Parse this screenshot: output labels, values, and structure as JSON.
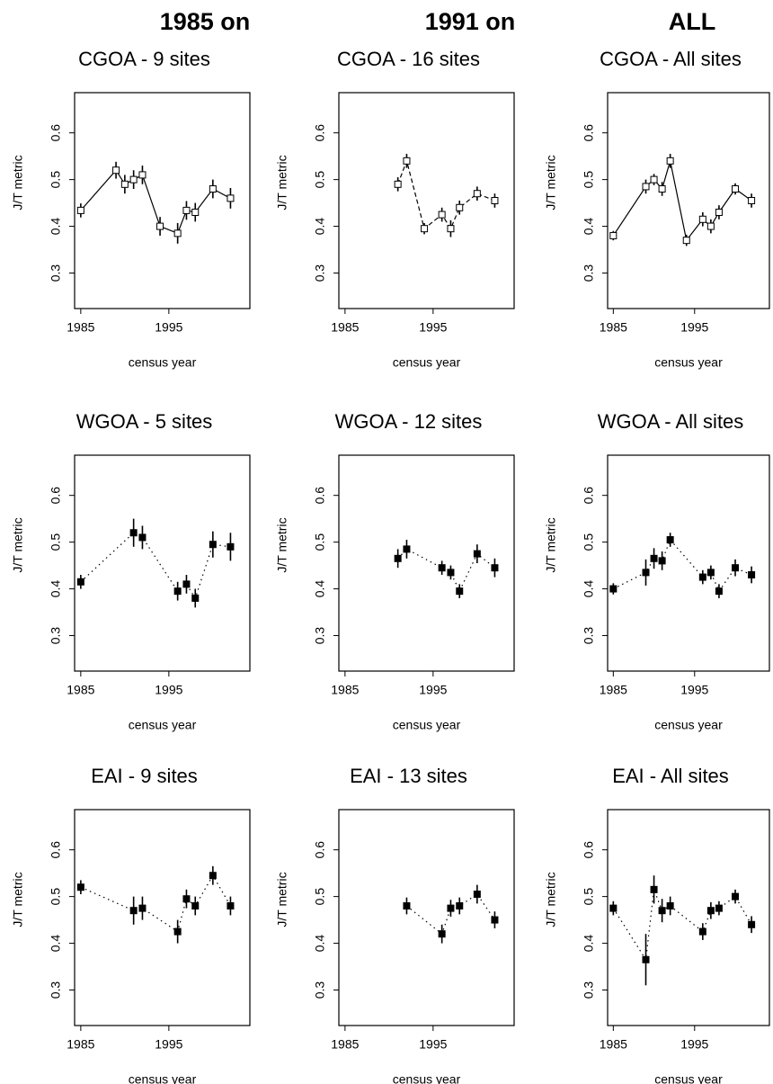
{
  "column_headers": [
    "1985 on",
    "1991 on",
    "ALL"
  ],
  "chart_data": [
    {
      "type": "line",
      "title": "CGOA - 9 sites",
      "xlabel": "census year",
      "ylabel": "J/T metric",
      "marker": "open",
      "line_style": "solid",
      "color": "#000000",
      "x": [
        1985,
        1989,
        1990,
        1991,
        1992,
        1994,
        1996,
        1997,
        1998,
        2000,
        2002
      ],
      "values": [
        0.434,
        0.52,
        0.49,
        0.5,
        0.51,
        0.4,
        0.385,
        0.434,
        0.43,
        0.48,
        0.46
      ],
      "errors": [
        0.015,
        0.018,
        0.02,
        0.02,
        0.02,
        0.02,
        0.022,
        0.02,
        0.02,
        0.02,
        0.022
      ],
      "xlim": [
        1984.3,
        2004.2
      ],
      "ylim": [
        0.224,
        0.686
      ],
      "xticks": [
        1985,
        1995
      ],
      "yticks": [
        0.3,
        0.4,
        0.5,
        0.6
      ]
    },
    {
      "type": "line",
      "title": "CGOA - 16 sites",
      "xlabel": "census year",
      "ylabel": "J/T metric",
      "marker": "open",
      "line_style": "dashed",
      "color": "#000000",
      "x": [
        1991,
        1992,
        1994,
        1996,
        1997,
        1998,
        2000,
        2002
      ],
      "values": [
        0.49,
        0.54,
        0.395,
        0.425,
        0.395,
        0.44,
        0.47,
        0.455
      ],
      "errors": [
        0.015,
        0.015,
        0.012,
        0.015,
        0.018,
        0.015,
        0.015,
        0.015
      ],
      "xlim": [
        1984.3,
        2004.2
      ],
      "ylim": [
        0.224,
        0.686
      ],
      "xticks": [
        1985,
        1995
      ],
      "yticks": [
        0.3,
        0.4,
        0.5,
        0.6
      ]
    },
    {
      "type": "line",
      "title": "CGOA - All sites",
      "xlabel": "census year",
      "ylabel": "J/T metric",
      "marker": "open",
      "line_style": "solid",
      "color": "#000000",
      "x": [
        1985,
        1989,
        1990,
        1991,
        1992,
        1994,
        1996,
        1997,
        1998,
        2000,
        2002
      ],
      "values": [
        0.38,
        0.485,
        0.5,
        0.48,
        0.54,
        0.37,
        0.415,
        0.4,
        0.43,
        0.48,
        0.455
      ],
      "errors": [
        0.01,
        0.015,
        0.012,
        0.015,
        0.015,
        0.012,
        0.015,
        0.015,
        0.015,
        0.012,
        0.015
      ],
      "xlim": [
        1984.3,
        2004.2
      ],
      "ylim": [
        0.224,
        0.686
      ],
      "xticks": [
        1985,
        1995
      ],
      "yticks": [
        0.3,
        0.4,
        0.5,
        0.6
      ]
    },
    {
      "type": "line",
      "title": "WGOA - 5 sites",
      "xlabel": "census year",
      "ylabel": "J/T metric",
      "marker": "filled",
      "line_style": "dotted",
      "color": "#000000",
      "x": [
        1985,
        1991,
        1992,
        1996,
        1997,
        1998,
        2000,
        2002
      ],
      "values": [
        0.415,
        0.52,
        0.51,
        0.395,
        0.41,
        0.38,
        0.495,
        0.49
      ],
      "errors": [
        0.015,
        0.03,
        0.025,
        0.02,
        0.02,
        0.02,
        0.028,
        0.03
      ],
      "xlim": [
        1984.3,
        2004.2
      ],
      "ylim": [
        0.224,
        0.686
      ],
      "xticks": [
        1985,
        1995
      ],
      "yticks": [
        0.3,
        0.4,
        0.5,
        0.6
      ]
    },
    {
      "type": "line",
      "title": "WGOA - 12 sites",
      "xlabel": "census year",
      "ylabel": "J/T metric",
      "marker": "filled",
      "line_style": "dotted",
      "color": "#000000",
      "x": [
        1991,
        1992,
        1996,
        1997,
        1998,
        2000,
        2002
      ],
      "values": [
        0.465,
        0.485,
        0.445,
        0.435,
        0.395,
        0.475,
        0.445
      ],
      "errors": [
        0.02,
        0.02,
        0.015,
        0.015,
        0.015,
        0.02,
        0.02
      ],
      "xlim": [
        1984.3,
        2004.2
      ],
      "ylim": [
        0.224,
        0.686
      ],
      "xticks": [
        1985,
        1995
      ],
      "yticks": [
        0.3,
        0.4,
        0.5,
        0.6
      ]
    },
    {
      "type": "line",
      "title": "WGOA - All sites",
      "xlabel": "census year",
      "ylabel": "J/T metric",
      "marker": "filled",
      "line_style": "dotted",
      "color": "#000000",
      "x": [
        1985,
        1989,
        1990,
        1991,
        1992,
        1996,
        1997,
        1998,
        2000,
        2002
      ],
      "values": [
        0.4,
        0.435,
        0.465,
        0.46,
        0.505,
        0.425,
        0.435,
        0.395,
        0.445,
        0.43
      ],
      "errors": [
        0.012,
        0.028,
        0.022,
        0.02,
        0.015,
        0.015,
        0.015,
        0.015,
        0.018,
        0.018
      ],
      "xlim": [
        1984.3,
        2004.2
      ],
      "ylim": [
        0.224,
        0.686
      ],
      "xticks": [
        1985,
        1995
      ],
      "yticks": [
        0.3,
        0.4,
        0.5,
        0.6
      ]
    },
    {
      "type": "line",
      "title": "EAI - 9 sites",
      "xlabel": "census year",
      "ylabel": "J/T metric",
      "marker": "filled",
      "line_style": "dotted",
      "color": "#000000",
      "x": [
        1985,
        1991,
        1992,
        1996,
        1997,
        1998,
        2000,
        2002
      ],
      "values": [
        0.52,
        0.47,
        0.475,
        0.425,
        0.495,
        0.48,
        0.545,
        0.48
      ],
      "errors": [
        0.015,
        0.03,
        0.025,
        0.025,
        0.02,
        0.02,
        0.02,
        0.02
      ],
      "xlim": [
        1984.3,
        2004.2
      ],
      "ylim": [
        0.224,
        0.686
      ],
      "xticks": [
        1985,
        1995
      ],
      "yticks": [
        0.3,
        0.4,
        0.5,
        0.6
      ]
    },
    {
      "type": "line",
      "title": "EAI - 13 sites",
      "xlabel": "census year",
      "ylabel": "J/T metric",
      "marker": "filled",
      "line_style": "dotted",
      "color": "#000000",
      "x": [
        1992,
        1996,
        1997,
        1998,
        2000,
        2002
      ],
      "values": [
        0.48,
        0.42,
        0.475,
        0.48,
        0.505,
        0.45
      ],
      "errors": [
        0.018,
        0.02,
        0.018,
        0.018,
        0.02,
        0.018
      ],
      "xlim": [
        1984.3,
        2004.2
      ],
      "ylim": [
        0.224,
        0.686
      ],
      "xticks": [
        1985,
        1995
      ],
      "yticks": [
        0.3,
        0.4,
        0.5,
        0.6
      ]
    },
    {
      "type": "line",
      "title": "EAI - All sites",
      "xlabel": "census year",
      "ylabel": "J/T metric",
      "marker": "filled",
      "line_style": "dotted",
      "color": "#000000",
      "x": [
        1985,
        1989,
        1990,
        1991,
        1992,
        1996,
        1997,
        1998,
        2000,
        2002
      ],
      "values": [
        0.475,
        0.365,
        0.515,
        0.47,
        0.48,
        0.425,
        0.47,
        0.475,
        0.5,
        0.44
      ],
      "errors": [
        0.015,
        0.055,
        0.03,
        0.025,
        0.02,
        0.018,
        0.018,
        0.015,
        0.015,
        0.018
      ],
      "xlim": [
        1984.3,
        2004.2
      ],
      "ylim": [
        0.224,
        0.686
      ],
      "xticks": [
        1985,
        1995
      ],
      "yticks": [
        0.3,
        0.4,
        0.5,
        0.6
      ]
    }
  ]
}
